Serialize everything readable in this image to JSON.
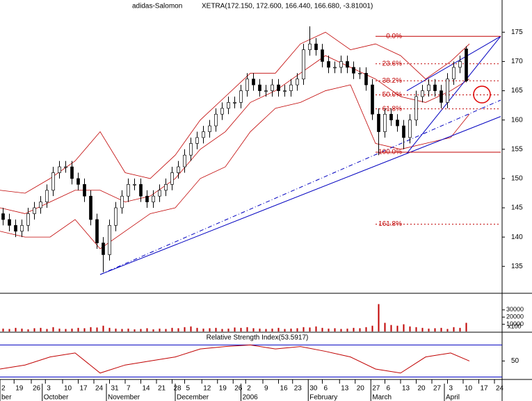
{
  "header": {
    "name": "adidas-Salomon",
    "quote": "XETRA(172.150, 172.600, 166.440, 166.680, -3.81001)"
  },
  "chart_data": [
    {
      "type": "candlestick",
      "xlim": [
        0,
        160
      ],
      "ylim": [
        130.4,
        180.5
      ],
      "yticks": [
        135,
        140,
        145,
        150,
        155,
        160,
        165,
        170,
        175
      ],
      "x": [
        1,
        3,
        5,
        7,
        9,
        11,
        13,
        15,
        17,
        19,
        21,
        23,
        25,
        27,
        29,
        31,
        33,
        35,
        37,
        39,
        41,
        43,
        45,
        47,
        49,
        51,
        53,
        55,
        57,
        59,
        61,
        63,
        65,
        67,
        69,
        71,
        73,
        75,
        77,
        79,
        81,
        83,
        85,
        87,
        89,
        91,
        93,
        95,
        97,
        99,
        101,
        103,
        105,
        107,
        109,
        111,
        113,
        115,
        117,
        119,
        121,
        123,
        125,
        127,
        129,
        131,
        133,
        135,
        137,
        139,
        141,
        143,
        145,
        147,
        149
      ],
      "open": [
        144,
        143,
        142,
        141,
        142,
        144,
        145,
        146,
        148,
        151,
        152,
        152,
        150,
        149,
        147,
        143,
        139,
        137,
        142,
        145,
        147,
        149,
        149,
        147,
        146,
        147,
        148,
        149,
        151,
        152,
        154,
        156,
        157,
        158,
        159,
        161,
        162,
        163,
        163,
        165,
        167,
        166,
        165,
        165,
        166,
        165,
        165,
        166,
        167,
        172,
        173,
        172,
        170,
        169,
        169,
        170,
        169,
        168,
        168,
        166,
        161,
        158,
        161,
        160,
        159,
        157,
        160,
        164,
        165,
        166,
        165,
        163,
        167,
        169,
        172.15
      ],
      "high": [
        145,
        144,
        143,
        143,
        145,
        146,
        147,
        149,
        152,
        153,
        153,
        153,
        151,
        150,
        148,
        144,
        140,
        143,
        146,
        148,
        150,
        150,
        150,
        148,
        148,
        149,
        150,
        152,
        153,
        155,
        157,
        158,
        159,
        160,
        162,
        163,
        164,
        164,
        166,
        168,
        168,
        167,
        166,
        167,
        167,
        166,
        167,
        168,
        173,
        176,
        174,
        173,
        171,
        170,
        171,
        171,
        170,
        169,
        169,
        167,
        162,
        162,
        162,
        161,
        160,
        161,
        165,
        166,
        167,
        167,
        166,
        168,
        170,
        171,
        172.6
      ],
      "low": [
        142,
        141,
        140,
        140,
        141,
        143,
        144,
        145,
        147,
        150,
        151,
        149,
        148,
        146,
        142,
        138,
        134,
        136,
        141,
        144,
        146,
        148,
        146,
        145,
        145,
        146,
        147,
        148,
        150,
        151,
        153,
        155,
        156,
        157,
        158,
        160,
        161,
        162,
        162,
        164,
        165,
        164,
        164,
        164,
        164,
        164,
        164,
        165,
        166,
        171,
        171,
        169,
        168,
        168,
        168,
        168,
        167,
        167,
        165,
        160,
        154,
        157,
        159,
        158,
        155,
        156,
        159,
        163,
        164,
        164,
        162,
        162,
        166,
        168,
        166.44
      ],
      "close": [
        143,
        142,
        141,
        142,
        144,
        145,
        146,
        148,
        151,
        152,
        152,
        150,
        149,
        147,
        143,
        139,
        137,
        142,
        145,
        147,
        149,
        149,
        147,
        146,
        147,
        148,
        149,
        151,
        152,
        154,
        156,
        157,
        158,
        159,
        161,
        162,
        163,
        163,
        165,
        167,
        166,
        165,
        165,
        166,
        165,
        165,
        166,
        167,
        172,
        173,
        172,
        170,
        169,
        169,
        170,
        169,
        168,
        168,
        166,
        161,
        158,
        161,
        160,
        159,
        157,
        160,
        164,
        165,
        166,
        165,
        163,
        167,
        169,
        170,
        166.68
      ],
      "up_color": "#ffffff",
      "down_color": "#000000",
      "bands": {
        "color": "#c00000",
        "x": [
          0,
          8,
          16,
          24,
          32,
          40,
          48,
          56,
          64,
          72,
          80,
          88,
          96,
          104,
          112,
          120,
          128,
          136,
          144,
          150
        ],
        "upper": [
          148,
          147.5,
          150,
          153,
          158,
          151,
          150,
          154,
          160,
          164,
          168,
          168,
          173,
          175,
          172,
          173,
          171,
          167,
          170,
          173
        ],
        "middle": [
          145,
          144,
          146,
          148,
          148,
          146,
          147,
          150,
          155,
          158,
          163,
          165,
          168,
          171,
          169,
          167,
          164,
          163,
          165,
          167
        ],
        "lower": [
          141,
          140,
          140,
          143,
          138,
          141,
          144,
          145,
          150,
          152,
          158,
          162,
          163,
          165,
          166,
          156,
          155,
          156,
          157,
          161
        ]
      },
      "trendlines": {
        "color": "#0000c0",
        "lines": [
          {
            "x": [
              32,
              160
            ],
            "y": [
              133.6,
              160.6
            ],
            "dash": false
          },
          {
            "x": [
              32,
              160
            ],
            "y": [
              133.6,
              163.4
            ],
            "dash": true
          },
          {
            "x": [
              130,
              160
            ],
            "y": [
              154.3,
              174.3
            ],
            "dash": false
          },
          {
            "x": [
              130,
              160
            ],
            "y": [
              165,
              174.3
            ],
            "dash": false
          }
        ]
      },
      "fibonacci": {
        "color": "#c00000",
        "x": [
          120,
          160
        ],
        "levels": [
          174.3,
          169.6,
          166.7,
          164.3,
          161.9,
          154.5,
          142.2
        ],
        "labels": [
          "0.0%",
          "23.6%",
          "38.2%",
          "50.0%",
          "61.8%",
          "100.0%",
          "161.8%"
        ]
      }
    },
    {
      "type": "bar",
      "xlim": [
        0,
        160
      ],
      "ylim": [
        0,
        53000
      ],
      "unit_label": "x100",
      "color": "#c00000",
      "yticks": [
        10000,
        20000,
        30000
      ],
      "values": [
        4000,
        3500,
        5000,
        4000,
        3000,
        4500,
        5000,
        3500,
        6000,
        4000,
        3500,
        4000,
        5000,
        4500,
        6000,
        5500,
        8000,
        5000,
        4000,
        3500,
        4000,
        3000,
        3500,
        4500,
        3000,
        4000,
        3500,
        5000,
        4500,
        6000,
        7000,
        5000,
        4000,
        4500,
        5000,
        3500,
        4000,
        5500,
        5000,
        6000,
        4500,
        4000,
        3500,
        4000,
        5000,
        3500,
        4000,
        4500,
        6000,
        5500,
        7000,
        5000,
        4000,
        4500,
        3500,
        4000,
        5000,
        4500,
        6000,
        8000,
        38000,
        12000,
        9000,
        8000,
        10000,
        7000,
        6000,
        5000,
        4000,
        4500,
        5000,
        3500,
        6000,
        5000,
        12000
      ]
    },
    {
      "type": "line",
      "title": "Relative Strength Index(53.5917)",
      "xlim": [
        0,
        160
      ],
      "ylim": [
        27,
        85
      ],
      "yticks": [
        50
      ],
      "levels": [
        70,
        30
      ],
      "level_color": "#0000c0",
      "color": "#c00000",
      "x": [
        0,
        8,
        16,
        24,
        32,
        40,
        48,
        56,
        64,
        72,
        80,
        88,
        96,
        104,
        112,
        120,
        128,
        136,
        144,
        150
      ],
      "values": [
        40,
        45,
        55,
        60,
        35,
        45,
        50,
        55,
        65,
        68,
        70,
        65,
        68,
        62,
        55,
        40,
        35,
        55,
        60,
        50
      ],
      "xticks": [
        {
          "value": 0,
          "label": "2"
        },
        {
          "value": 4.5,
          "label": "19"
        },
        {
          "value": 10,
          "label": "26"
        },
        {
          "value": 14.5,
          "label": "3"
        },
        {
          "value": 20,
          "label": "10"
        },
        {
          "value": 25,
          "label": "17"
        },
        {
          "value": 30,
          "label": "24"
        },
        {
          "value": 35,
          "label": "31"
        },
        {
          "value": 40,
          "label": "7"
        },
        {
          "value": 45,
          "label": "14"
        },
        {
          "value": 50,
          "label": "21"
        },
        {
          "value": 55,
          "label": "28"
        },
        {
          "value": 59,
          "label": "5"
        },
        {
          "value": 64.5,
          "label": "12"
        },
        {
          "value": 69.5,
          "label": "19"
        },
        {
          "value": 74.5,
          "label": "26"
        },
        {
          "value": 78.5,
          "label": "2"
        },
        {
          "value": 84,
          "label": "9"
        },
        {
          "value": 89,
          "label": "16"
        },
        {
          "value": 93.5,
          "label": "23"
        },
        {
          "value": 98.5,
          "label": "30"
        },
        {
          "value": 103,
          "label": "6"
        },
        {
          "value": 108.5,
          "label": "13"
        },
        {
          "value": 113.5,
          "label": "20"
        },
        {
          "value": 118.5,
          "label": "27"
        },
        {
          "value": 123,
          "label": "6"
        },
        {
          "value": 128,
          "label": "13"
        },
        {
          "value": 133,
          "label": "20"
        },
        {
          "value": 138,
          "label": "27"
        },
        {
          "value": 143,
          "label": "3"
        },
        {
          "value": 148,
          "label": "10"
        },
        {
          "value": 153,
          "label": "17"
        },
        {
          "value": 158,
          "label": "24"
        }
      ],
      "months": [
        {
          "value": 0,
          "label": "ber"
        },
        {
          "value": 13.5,
          "label": "October"
        },
        {
          "value": 34,
          "label": "November"
        },
        {
          "value": 56,
          "label": "December"
        },
        {
          "value": 77,
          "label": "2006"
        },
        {
          "value": 98.5,
          "label": "February"
        },
        {
          "value": 118.5,
          "label": "March"
        },
        {
          "value": 142,
          "label": "April"
        }
      ]
    }
  ]
}
